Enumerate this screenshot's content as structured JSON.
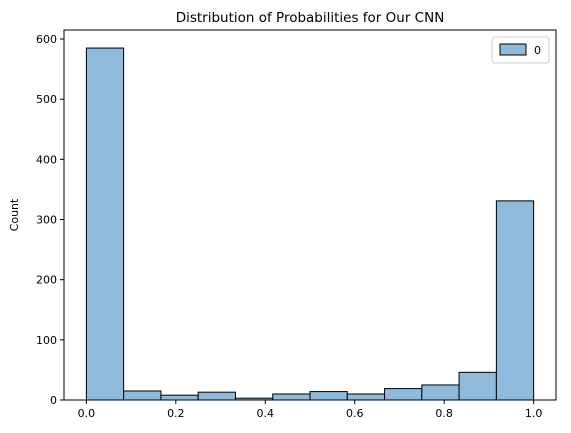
{
  "chart_data": {
    "type": "bar",
    "title": "Distribution of Probabilities for Our CNN",
    "xlabel": "",
    "ylabel": "Count",
    "xlim": [
      -0.05,
      1.05
    ],
    "ylim": [
      0,
      615
    ],
    "xticks": [
      0.0,
      0.2,
      0.4,
      0.6,
      0.8,
      1.0
    ],
    "xtick_labels": [
      "0.0",
      "0.2",
      "0.4",
      "0.6",
      "0.8",
      "1.0"
    ],
    "yticks": [
      0,
      100,
      200,
      300,
      400,
      500,
      600
    ],
    "ytick_labels": [
      "0",
      "100",
      "200",
      "300",
      "400",
      "500",
      "600"
    ],
    "grid": false,
    "legend": {
      "placement": "top-right",
      "entries": [
        "0"
      ]
    },
    "bin_edges": [
      0.0,
      0.0833,
      0.1667,
      0.25,
      0.3333,
      0.4167,
      0.5,
      0.5833,
      0.6667,
      0.75,
      0.8333,
      0.9167,
      1.0
    ],
    "series": [
      {
        "name": "0",
        "values": [
          585,
          15,
          8,
          13,
          3,
          10,
          14,
          10,
          19,
          25,
          46,
          331
        ]
      }
    ],
    "colors": {
      "bar_fill": "#8fbadb",
      "bar_edge": "#000000"
    }
  }
}
